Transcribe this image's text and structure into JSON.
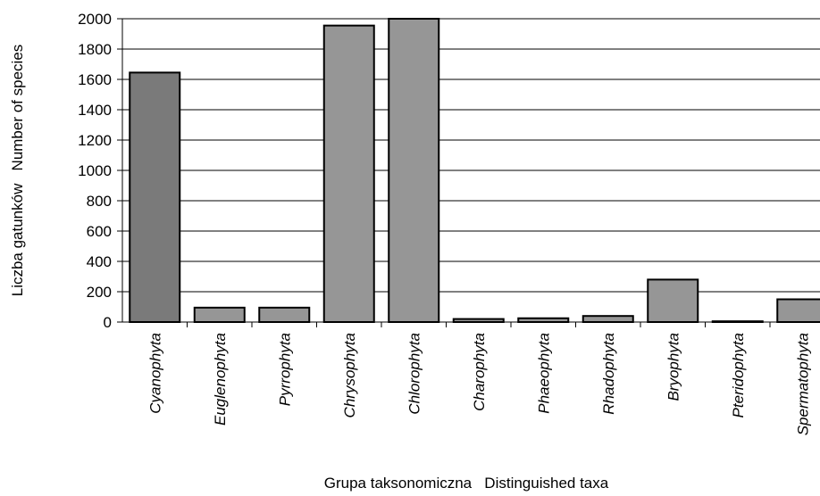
{
  "chart_data": {
    "type": "bar",
    "categories": [
      "Cyanophyta",
      "Euglenophyta",
      "Pyrrophyta",
      "Chrysophyta",
      "Chlorophyta",
      "Charophyta",
      "Phaeophyta",
      "Rhadophyta",
      "Bryophyta",
      "Pteridophyta",
      "Spermatophyta"
    ],
    "values": [
      1645,
      95,
      95,
      1955,
      2000,
      20,
      25,
      40,
      280,
      5,
      150
    ],
    "xlabel": "Grupa taksonomiczna   Distinguished taxa",
    "ylabel": "Liczba gatunków   Number of species",
    "ylim": [
      0,
      2000
    ],
    "yticks": [
      0,
      200,
      400,
      600,
      800,
      1000,
      1200,
      1400,
      1600,
      1800,
      2000
    ],
    "grid": true,
    "colors": {
      "bar": "#969696",
      "highlight_bar": "#7a7a7a",
      "bar_stroke": "#000000",
      "grid": "#000000"
    },
    "highlight_index": 0
  }
}
